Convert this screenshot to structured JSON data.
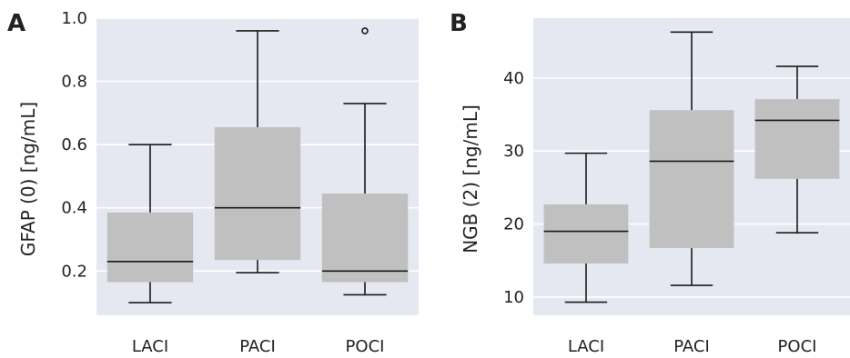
{
  "chart_data": [
    {
      "panel_label": "A",
      "type": "box",
      "ylabel": "GFAP (0) [ng/mL]",
      "xlabel": "",
      "categories": [
        "LACI",
        "PACI",
        "POCI"
      ],
      "ylim": [
        0.06,
        1.0
      ],
      "yticks": [
        0.2,
        0.4,
        0.6,
        0.8,
        1.0
      ],
      "ytick_labels": [
        "0.2",
        "0.4",
        "0.6",
        "0.8",
        "1.0"
      ],
      "grid": true,
      "boxes": [
        {
          "category": "LACI",
          "whisker_low": 0.1,
          "q1": 0.165,
          "median": 0.23,
          "q3": 0.385,
          "whisker_high": 0.6,
          "outliers": []
        },
        {
          "category": "PACI",
          "whisker_low": 0.195,
          "q1": 0.235,
          "median": 0.4,
          "q3": 0.655,
          "whisker_high": 0.96,
          "outliers": []
        },
        {
          "category": "POCI",
          "whisker_low": 0.125,
          "q1": 0.165,
          "median": 0.2,
          "q3": 0.445,
          "whisker_high": 0.73,
          "outliers": [
            0.96
          ]
        }
      ]
    },
    {
      "panel_label": "B",
      "type": "box",
      "ylabel": "NGB (2) [ng/mL]",
      "xlabel": "",
      "categories": [
        "LACI",
        "PACI",
        "POCI"
      ],
      "ylim": [
        7.5,
        48.2
      ],
      "yticks": [
        10,
        20,
        30,
        40
      ],
      "ytick_labels": [
        "10",
        "20",
        "30",
        "40"
      ],
      "grid": true,
      "boxes": [
        {
          "category": "LACI",
          "whisker_low": 9.3,
          "q1": 14.6,
          "median": 19.0,
          "q3": 22.7,
          "whisker_high": 29.7,
          "outliers": []
        },
        {
          "category": "PACI",
          "whisker_low": 11.6,
          "q1": 16.7,
          "median": 28.6,
          "q3": 35.6,
          "whisker_high": 46.3,
          "outliers": []
        },
        {
          "category": "POCI",
          "whisker_low": 18.8,
          "q1": 26.2,
          "median": 34.2,
          "q3": 37.1,
          "whisker_high": 41.6,
          "outliers": []
        }
      ]
    }
  ],
  "colors": {
    "plot_background": "#e6e8f1",
    "grid": "#ffffff",
    "box_fill": "#c0c0c0",
    "line": "#1a1a1a",
    "text": "#222222"
  }
}
